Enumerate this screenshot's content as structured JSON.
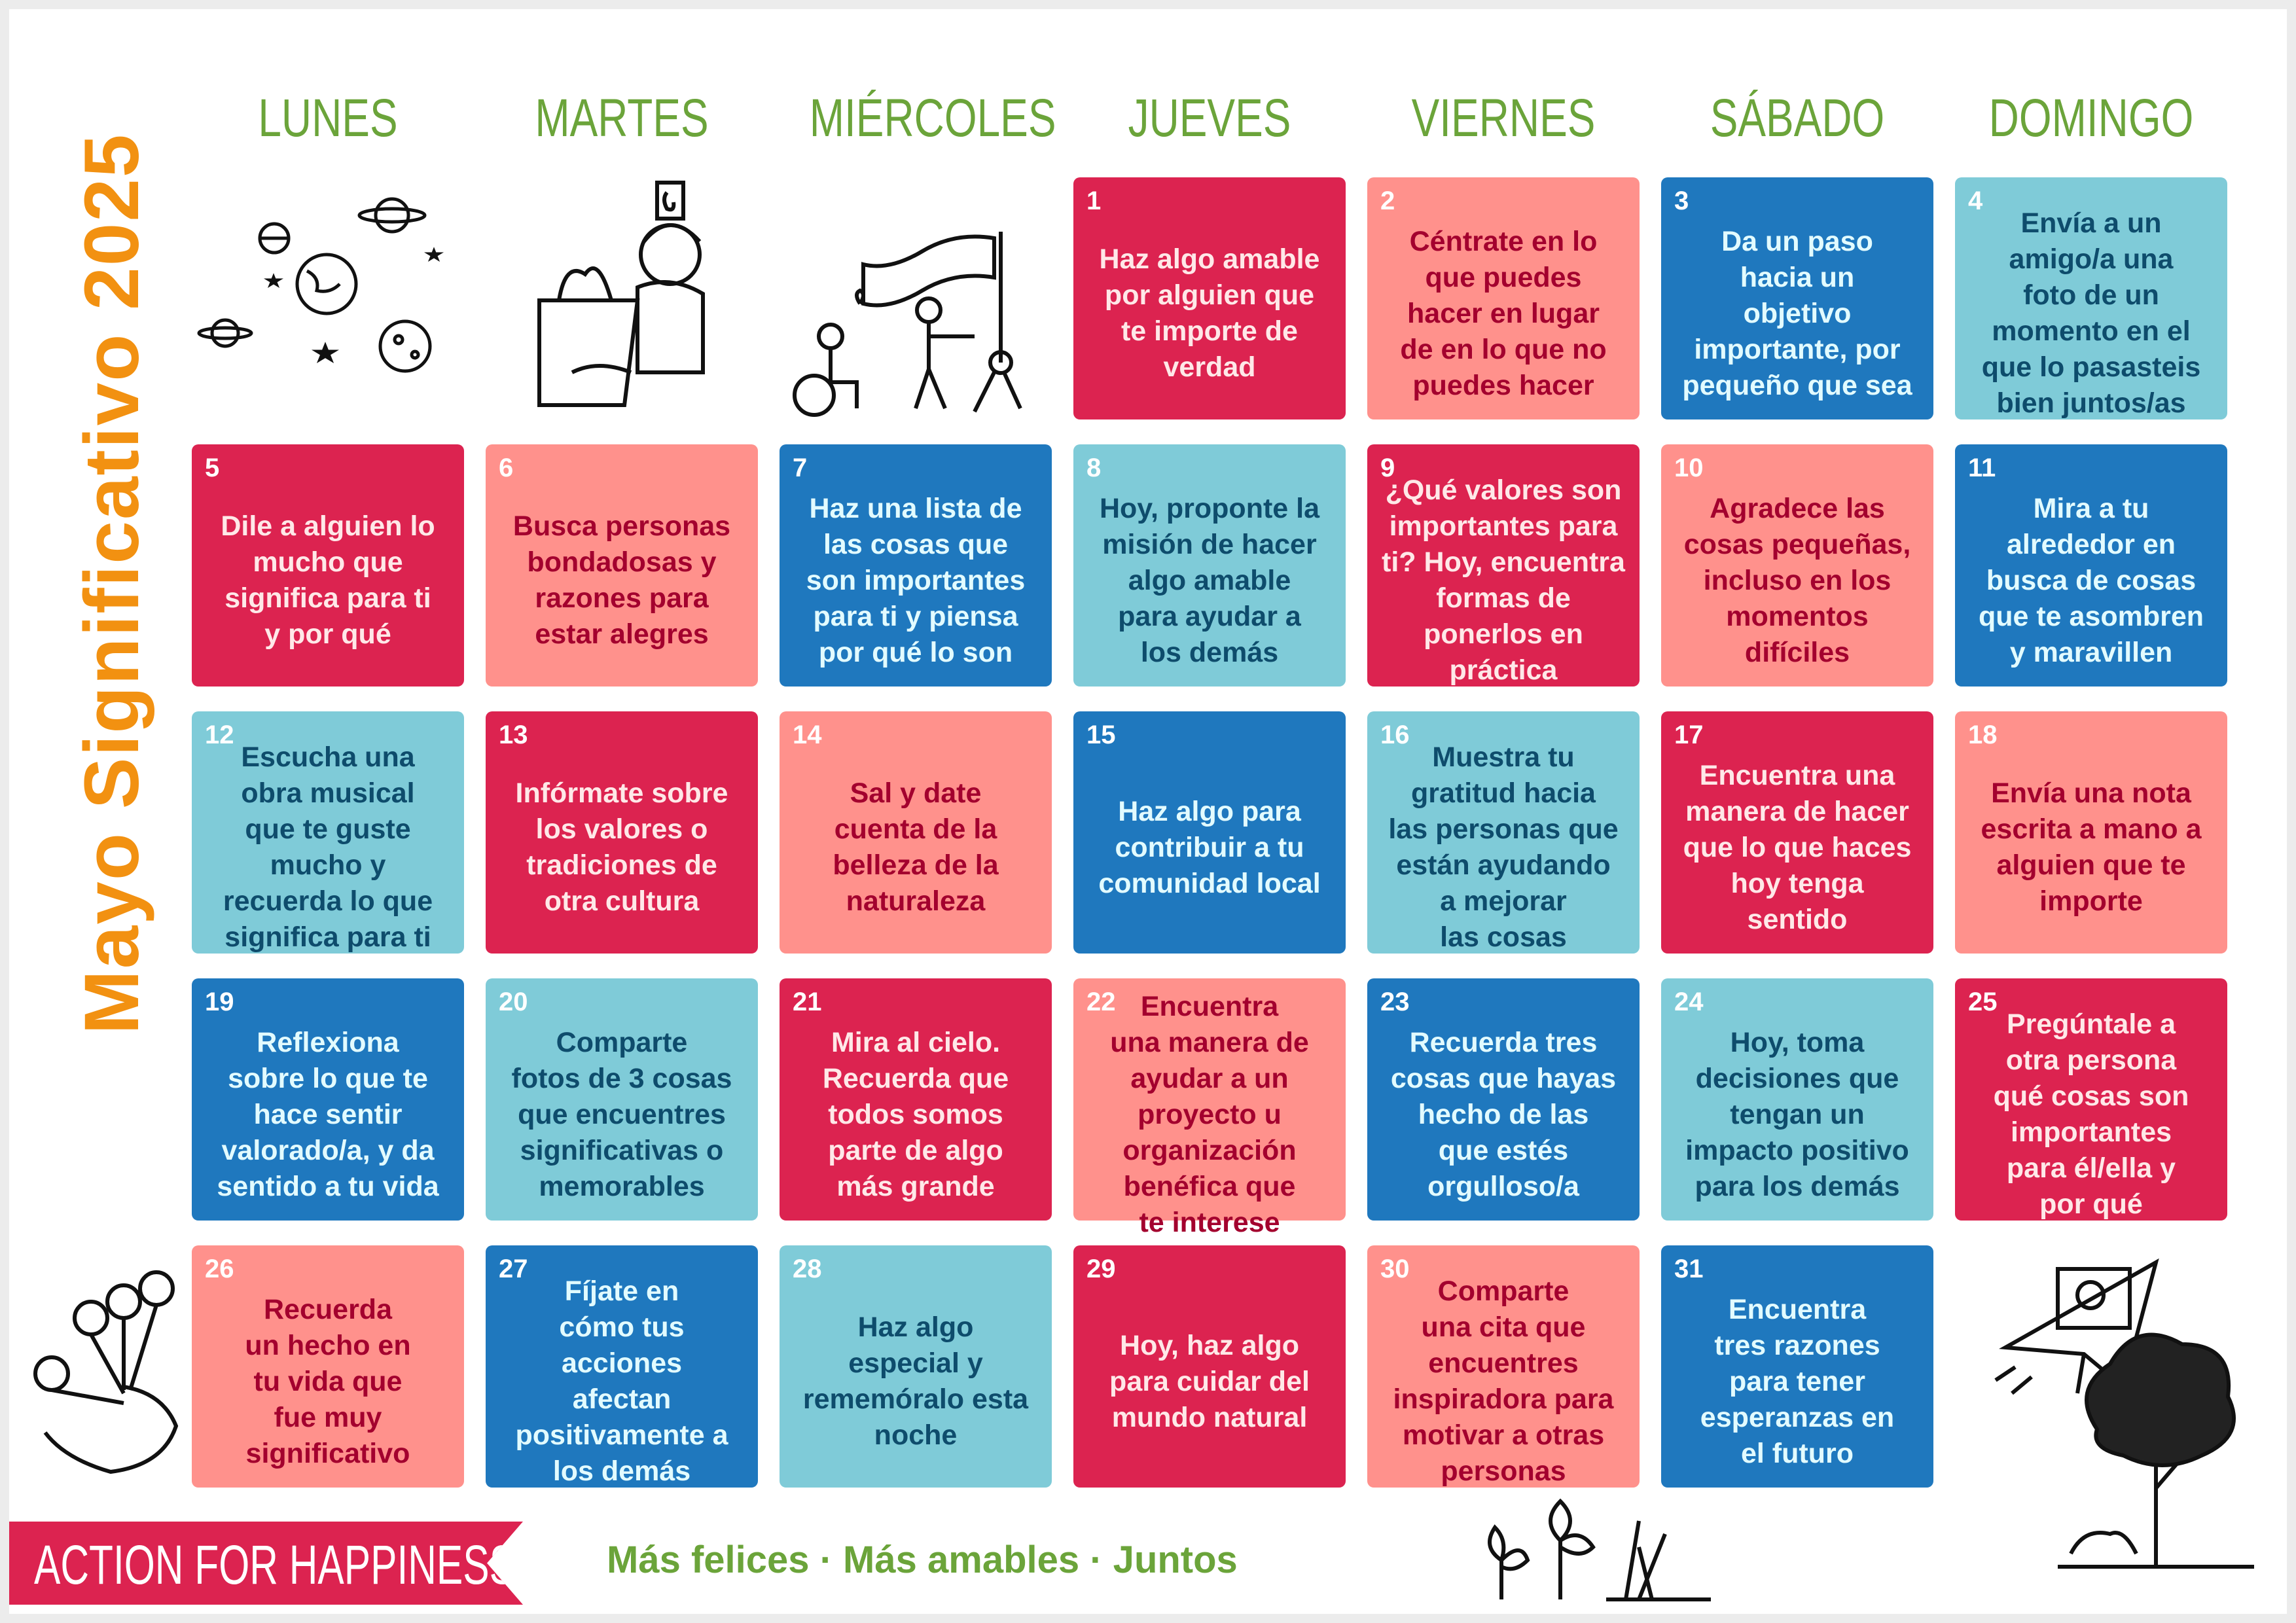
{
  "title": "Mayo Significativo 2025",
  "weekdays": [
    "LUNES",
    "MARTES",
    "MIÉRCOLES",
    "JUEVES",
    "VIERNES",
    "SÁBADO",
    "DOMINGO"
  ],
  "colors": {
    "red": "#DC2350",
    "pink": "#FF918C",
    "blue": "#1F78BE",
    "teal": "#7FCBD8",
    "title": "#F29111",
    "green": "#6BA43A"
  },
  "first_weekday_index": 3,
  "days": [
    {
      "day": "1",
      "color": "red",
      "text": "Haz algo amable\npor alguien que\nte importe de\nverdad"
    },
    {
      "day": "2",
      "color": "pink",
      "text": "Céntrate en lo\nque puedes\nhacer en lugar\nde en lo que no\npuedes hacer"
    },
    {
      "day": "3",
      "color": "blue",
      "text": "Da un paso\nhacia un\nobjetivo\nimportante, por\npequeño que sea"
    },
    {
      "day": "4",
      "color": "teal",
      "text": "Envía a un\namigo/a una\nfoto de un\nmomento en el\nque lo pasasteis\nbien juntos/as"
    },
    {
      "day": "5",
      "color": "red",
      "text": "Dile a alguien lo\nmucho que\nsignifica para ti\ny por qué"
    },
    {
      "day": "6",
      "color": "pink",
      "text": "Busca personas\nbondadosas y\nrazones para\nestar alegres"
    },
    {
      "day": "7",
      "color": "blue",
      "text": "Haz una lista de\nlas cosas que\nson importantes\npara ti y piensa\npor qué lo son"
    },
    {
      "day": "8",
      "color": "teal",
      "text": "Hoy, proponte la\nmisión de hacer\nalgo amable\npara ayudar a\nlos demás"
    },
    {
      "day": "9",
      "color": "red",
      "text": "¿Qué valores son\nimportantes para\nti? Hoy, encuentra\nformas de\nponerlos en\npráctica"
    },
    {
      "day": "10",
      "color": "pink",
      "text": "Agradece las\ncosas pequeñas,\nincluso en los\nmomentos\ndifíciles"
    },
    {
      "day": "11",
      "color": "blue",
      "text": "Mira a tu\nalrededor en\nbusca de cosas\nque te asombren\ny maravillen"
    },
    {
      "day": "12",
      "color": "teal",
      "text": "Escucha una\nobra musical\nque te guste\nmucho y\nrecuerda lo que\nsignifica para ti"
    },
    {
      "day": "13",
      "color": "red",
      "text": "Infórmate sobre\nlos valores o\ntradiciones de\notra cultura"
    },
    {
      "day": "14",
      "color": "pink",
      "text": "Sal y date\ncuenta de la\nbelleza de la\nnaturaleza"
    },
    {
      "day": "15",
      "color": "blue",
      "text": "Haz algo para\ncontribuir a tu\ncomunidad local"
    },
    {
      "day": "16",
      "color": "teal",
      "text": "Muestra tu\ngratitud hacia\nlas personas que\nestán ayudando\na mejorar\nlas cosas"
    },
    {
      "day": "17",
      "color": "red",
      "text": "Encuentra una\nmanera de hacer\nque lo que haces\nhoy tenga\nsentido"
    },
    {
      "day": "18",
      "color": "pink",
      "text": "Envía una nota\nescrita a mano a\nalguien que te\nimporte"
    },
    {
      "day": "19",
      "color": "blue",
      "text": "Reflexiona\nsobre lo que te\nhace sentir\nvalorado/a, y da\nsentido a tu vida"
    },
    {
      "day": "20",
      "color": "teal",
      "text": "Comparte\nfotos de 3 cosas\nque encuentres\nsignificativas o\nmemorables"
    },
    {
      "day": "21",
      "color": "red",
      "text": "Mira al cielo.\nRecuerda que\ntodos somos\nparte de algo\nmás grande"
    },
    {
      "day": "22",
      "color": "pink",
      "text": "Encuentra\nuna manera de\nayudar a un\nproyecto u\norganización\nbenéfica que\nte interese"
    },
    {
      "day": "23",
      "color": "blue",
      "text": "Recuerda tres\ncosas que hayas\nhecho de las\nque estés\norgulloso/a"
    },
    {
      "day": "24",
      "color": "teal",
      "text": "Hoy, toma\ndecisiones que\ntengan un\nimpacto positivo\npara los demás"
    },
    {
      "day": "25",
      "color": "red",
      "text": "Pregúntale a\notra persona\nqué cosas son\nimportantes\npara él/ella y\npor qué"
    },
    {
      "day": "26",
      "color": "pink",
      "text": "Recuerda\nun hecho en\ntu vida que\nfue muy\nsignificativo"
    },
    {
      "day": "27",
      "color": "blue",
      "text": "Fíjate en\ncómo tus\nacciones\nafectan\npositivamente a\nlos demás"
    },
    {
      "day": "28",
      "color": "teal",
      "text": "Haz algo\nespecial y\nrememóralo esta\nnoche"
    },
    {
      "day": "29",
      "color": "red",
      "text": "Hoy, haz algo\npara cuidar del\nmundo natural"
    },
    {
      "day": "30",
      "color": "pink",
      "text": "Comparte\nuna cita que\nencuentres\ninspiradora para\nmotivar a otras\npersonas"
    },
    {
      "day": "31",
      "color": "blue",
      "text": "Encuentra\ntres razones\npara tener\nesperanzas en\nel futuro"
    }
  ],
  "footer": {
    "brand": "ACTION FOR HAPPINESS",
    "tagline": "Más felices · Más amables · Juntos"
  },
  "illustrations": [
    "planets-icon",
    "person-with-groceries-icon",
    "people-with-flag-icon",
    "flowers-bouquet-icon",
    "paper-plane-icon",
    "tree-sunrise-icon",
    "sprouts-icon"
  ]
}
